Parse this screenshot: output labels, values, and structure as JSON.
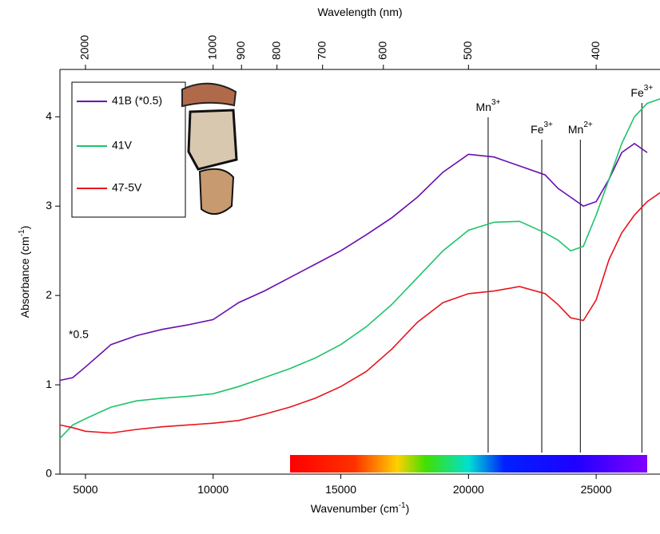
{
  "chart_data": {
    "type": "line",
    "x2label": "Wavelength (nm)",
    "xlabel": {
      "text": "Wavenumber (cm",
      "sup": "-1",
      "end": ")"
    },
    "ylabel": {
      "text": "Absorbance (cm",
      "sup": "-1",
      "end": ")"
    },
    "xlim": [
      4000,
      27500
    ],
    "ylim": [
      0,
      4.53
    ],
    "xticks": [
      5000,
      10000,
      15000,
      20000,
      25000
    ],
    "yticks": [
      0,
      1,
      2,
      3,
      4
    ],
    "x2ticks": [
      2000,
      1000,
      900,
      800,
      700,
      600,
      500,
      400
    ],
    "x": [
      4000,
      4500,
      5000,
      6000,
      7000,
      8000,
      9000,
      10000,
      11000,
      12000,
      13000,
      14000,
      15000,
      16000,
      17000,
      18000,
      19000,
      20000,
      21000,
      22000,
      23000,
      23500,
      24000,
      24500,
      25000,
      25500,
      26000,
      26500,
      27000,
      27500
    ],
    "series": [
      {
        "name": "41B (*0.5)",
        "color": "#6a0dad",
        "values": [
          1.05,
          1.08,
          1.2,
          1.45,
          1.55,
          1.62,
          1.67,
          1.73,
          1.92,
          2.05,
          2.2,
          2.35,
          2.5,
          2.68,
          2.87,
          3.1,
          3.38,
          3.58,
          3.55,
          3.45,
          3.35,
          3.2,
          3.1,
          3.0,
          3.05,
          3.3,
          3.6,
          3.7,
          3.6,
          null
        ]
      },
      {
        "name": "41V",
        "color": "#1ec36a",
        "values": [
          0.4,
          0.55,
          0.62,
          0.75,
          0.82,
          0.85,
          0.87,
          0.9,
          0.98,
          1.08,
          1.18,
          1.3,
          1.45,
          1.65,
          1.9,
          2.2,
          2.5,
          2.73,
          2.82,
          2.83,
          2.7,
          2.62,
          2.5,
          2.55,
          2.9,
          3.3,
          3.7,
          4.0,
          4.15,
          4.2
        ]
      },
      {
        "name": "47-5V",
        "color": "#e8141c",
        "values": [
          0.55,
          0.52,
          0.48,
          0.46,
          0.5,
          0.53,
          0.55,
          0.57,
          0.6,
          0.67,
          0.75,
          0.85,
          0.98,
          1.15,
          1.4,
          1.7,
          1.92,
          2.02,
          2.05,
          2.1,
          2.02,
          1.9,
          1.75,
          1.72,
          1.95,
          2.4,
          2.7,
          2.9,
          3.05,
          3.15
        ]
      }
    ],
    "annotations": [
      {
        "text": "Mn",
        "sup": "3+",
        "x": 20770
      },
      {
        "text": "Fe",
        "sup": "3+",
        "x": 22870
      },
      {
        "text": "Mn",
        "sup": "2+",
        "x": 24380
      },
      {
        "text": "Fe",
        "sup": "3+",
        "x": 26790
      }
    ],
    "note": "*0.5"
  }
}
